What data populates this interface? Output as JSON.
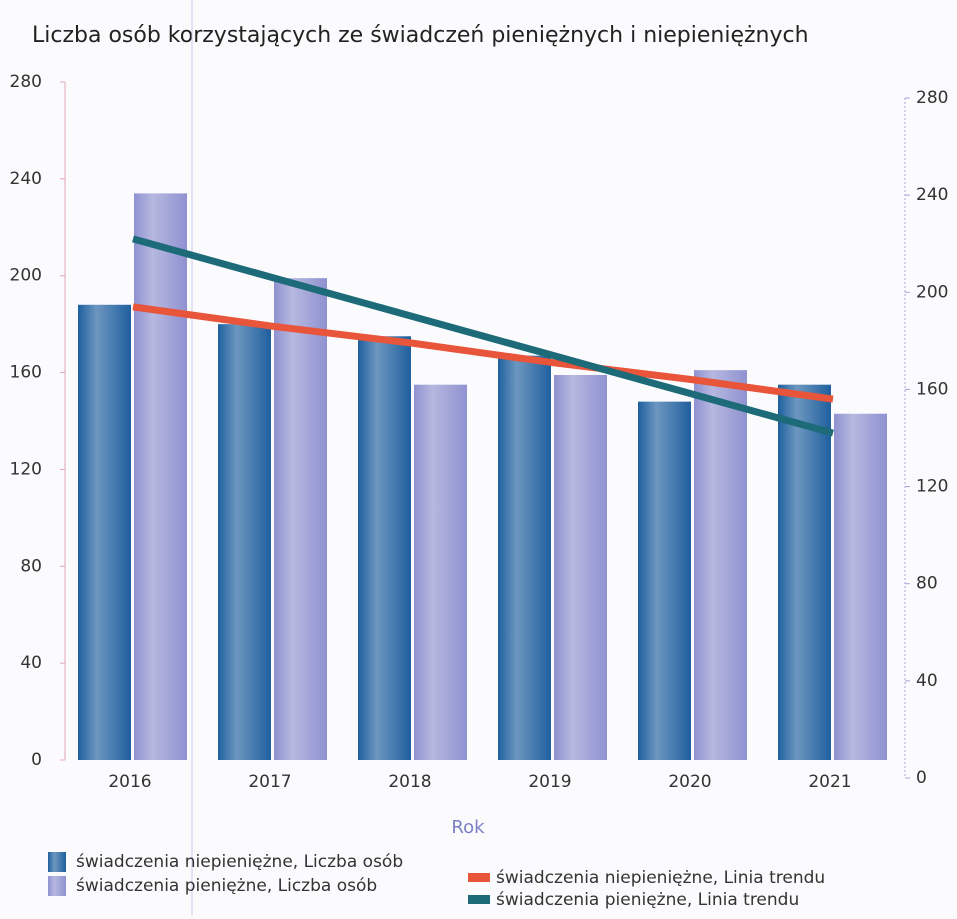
{
  "chart_data": {
    "type": "bar",
    "title": "Liczba osób korzystających ze świadczeń pieniężnych i niepieniężnych",
    "x_label": "Rok",
    "categories": [
      "2016",
      "2017",
      "2018",
      "2019",
      "2020",
      "2021"
    ],
    "series": [
      {
        "name": "świadczenia niepieniężne, Liczba osób",
        "color": "#1f5f9e",
        "values": [
          188,
          180,
          175,
          167,
          148,
          155
        ]
      },
      {
        "name": "świadczenia pieniężne, Liczba osób",
        "color": "#8f92d0",
        "values": [
          234,
          199,
          155,
          159,
          161,
          143
        ]
      },
      {
        "name": "świadczenia niepieniężne, Linia trendu",
        "type": "line",
        "axis": "y2",
        "color": "#e8553a",
        "values": [
          194,
          186,
          179,
          171,
          164,
          156
        ]
      },
      {
        "name": "świadczenia pieniężne, Linia trendu",
        "type": "line",
        "axis": "y2",
        "color": "#1d6a78",
        "values": [
          222,
          206,
          190,
          174,
          158,
          142
        ]
      }
    ],
    "ylim": [
      0,
      280
    ],
    "yticks": [
      0,
      40,
      80,
      120,
      160,
      200,
      240,
      280
    ],
    "y2lim": [
      0,
      280
    ],
    "y2ticks": [
      0,
      40,
      80,
      120,
      160,
      200,
      240,
      280
    ]
  }
}
